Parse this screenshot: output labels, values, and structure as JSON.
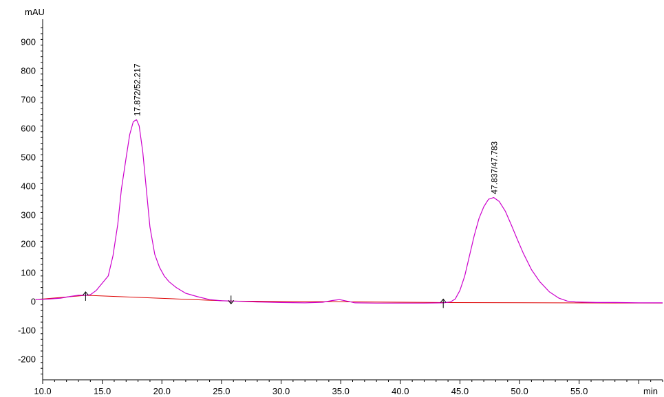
{
  "chart_data": {
    "type": "line",
    "ylabel": "mAU",
    "xlabel": "min",
    "xlim": [
      10.0,
      62.0
    ],
    "ylim": [
      -270,
      980
    ],
    "x_ticks": [
      "10.0",
      "15.0",
      "20.0",
      "25.0",
      "30.0",
      "35.0",
      "40.0",
      "45.0",
      "50.0",
      "55.0"
    ],
    "x_tick_values": [
      10,
      15,
      20,
      25,
      30,
      35,
      40,
      45,
      50,
      55
    ],
    "y_ticks": [
      "-200",
      "-100",
      "0",
      "100",
      "200",
      "300",
      "400",
      "500",
      "600",
      "700",
      "800",
      "900"
    ],
    "y_tick_values": [
      -200,
      -100,
      0,
      100,
      200,
      300,
      400,
      500,
      600,
      700,
      800,
      900
    ],
    "grid": false,
    "colors": {
      "signal": "#cc00cc",
      "baseline": "#dd0000",
      "axis": "#000000",
      "marker": "#000000"
    },
    "series": [
      {
        "x": [
          9.4,
          10.5,
          11.5,
          12.3,
          13.0,
          13.6,
          14.0,
          14.5,
          15.0,
          15.5,
          15.9,
          16.3,
          16.6,
          17.0,
          17.3,
          17.6,
          17.872,
          18.1,
          18.4,
          18.7,
          19.0,
          19.4,
          19.8,
          20.2,
          20.6,
          21.2,
          22.0,
          23.0,
          24.0,
          25.0,
          26.0,
          28.0,
          30.0,
          32.0,
          33.5,
          34.3,
          34.9,
          35.5,
          36.2,
          38.0,
          40.0,
          42.0,
          43.6,
          44.2,
          44.6,
          45.0,
          45.4,
          45.8,
          46.2,
          46.6,
          47.0,
          47.4,
          47.837,
          48.3,
          48.8,
          49.3,
          49.8,
          50.3,
          51.0,
          51.7,
          52.5,
          53.3,
          54.0,
          54.7,
          55.5,
          56.5,
          58.0,
          60.0,
          62.0
        ],
        "y": [
          8,
          10,
          13,
          19,
          23,
          23,
          25,
          40,
          65,
          90,
          160,
          270,
          390,
          500,
          580,
          625,
          632,
          610,
          520,
          390,
          260,
          165,
          120,
          90,
          70,
          50,
          30,
          18,
          8,
          4,
          3,
          0,
          -2,
          -3,
          -1,
          5,
          8,
          3,
          -3,
          -4,
          -4,
          -4,
          -3,
          0,
          10,
          40,
          90,
          160,
          230,
          290,
          330,
          356,
          362,
          348,
          315,
          268,
          218,
          170,
          112,
          70,
          35,
          13,
          3,
          0,
          -1,
          -2,
          -2,
          -3,
          -3
        ]
      }
    ],
    "baselines": [
      {
        "x": [
          9.4,
          13.6
        ],
        "y": [
          8,
          23
        ]
      },
      {
        "x": [
          13.6,
          25.8
        ],
        "y": [
          23,
          3
        ]
      },
      {
        "x": [
          25.8,
          43.6
        ],
        "y": [
          3,
          -2
        ]
      },
      {
        "x": [
          43.6,
          62.0
        ],
        "y": [
          -2,
          -4
        ]
      }
    ],
    "markers": [
      {
        "x": 13.6,
        "y": 23,
        "dir": "up"
      },
      {
        "x": 25.8,
        "y": 3,
        "dir": "down"
      },
      {
        "x": 43.6,
        "y": -2,
        "dir": "up"
      }
    ],
    "annotations": [
      {
        "text": "17.872/52.217",
        "x": 17.872,
        "y": 632
      },
      {
        "text": "47.837/47.783",
        "x": 47.837,
        "y": 362
      }
    ]
  }
}
